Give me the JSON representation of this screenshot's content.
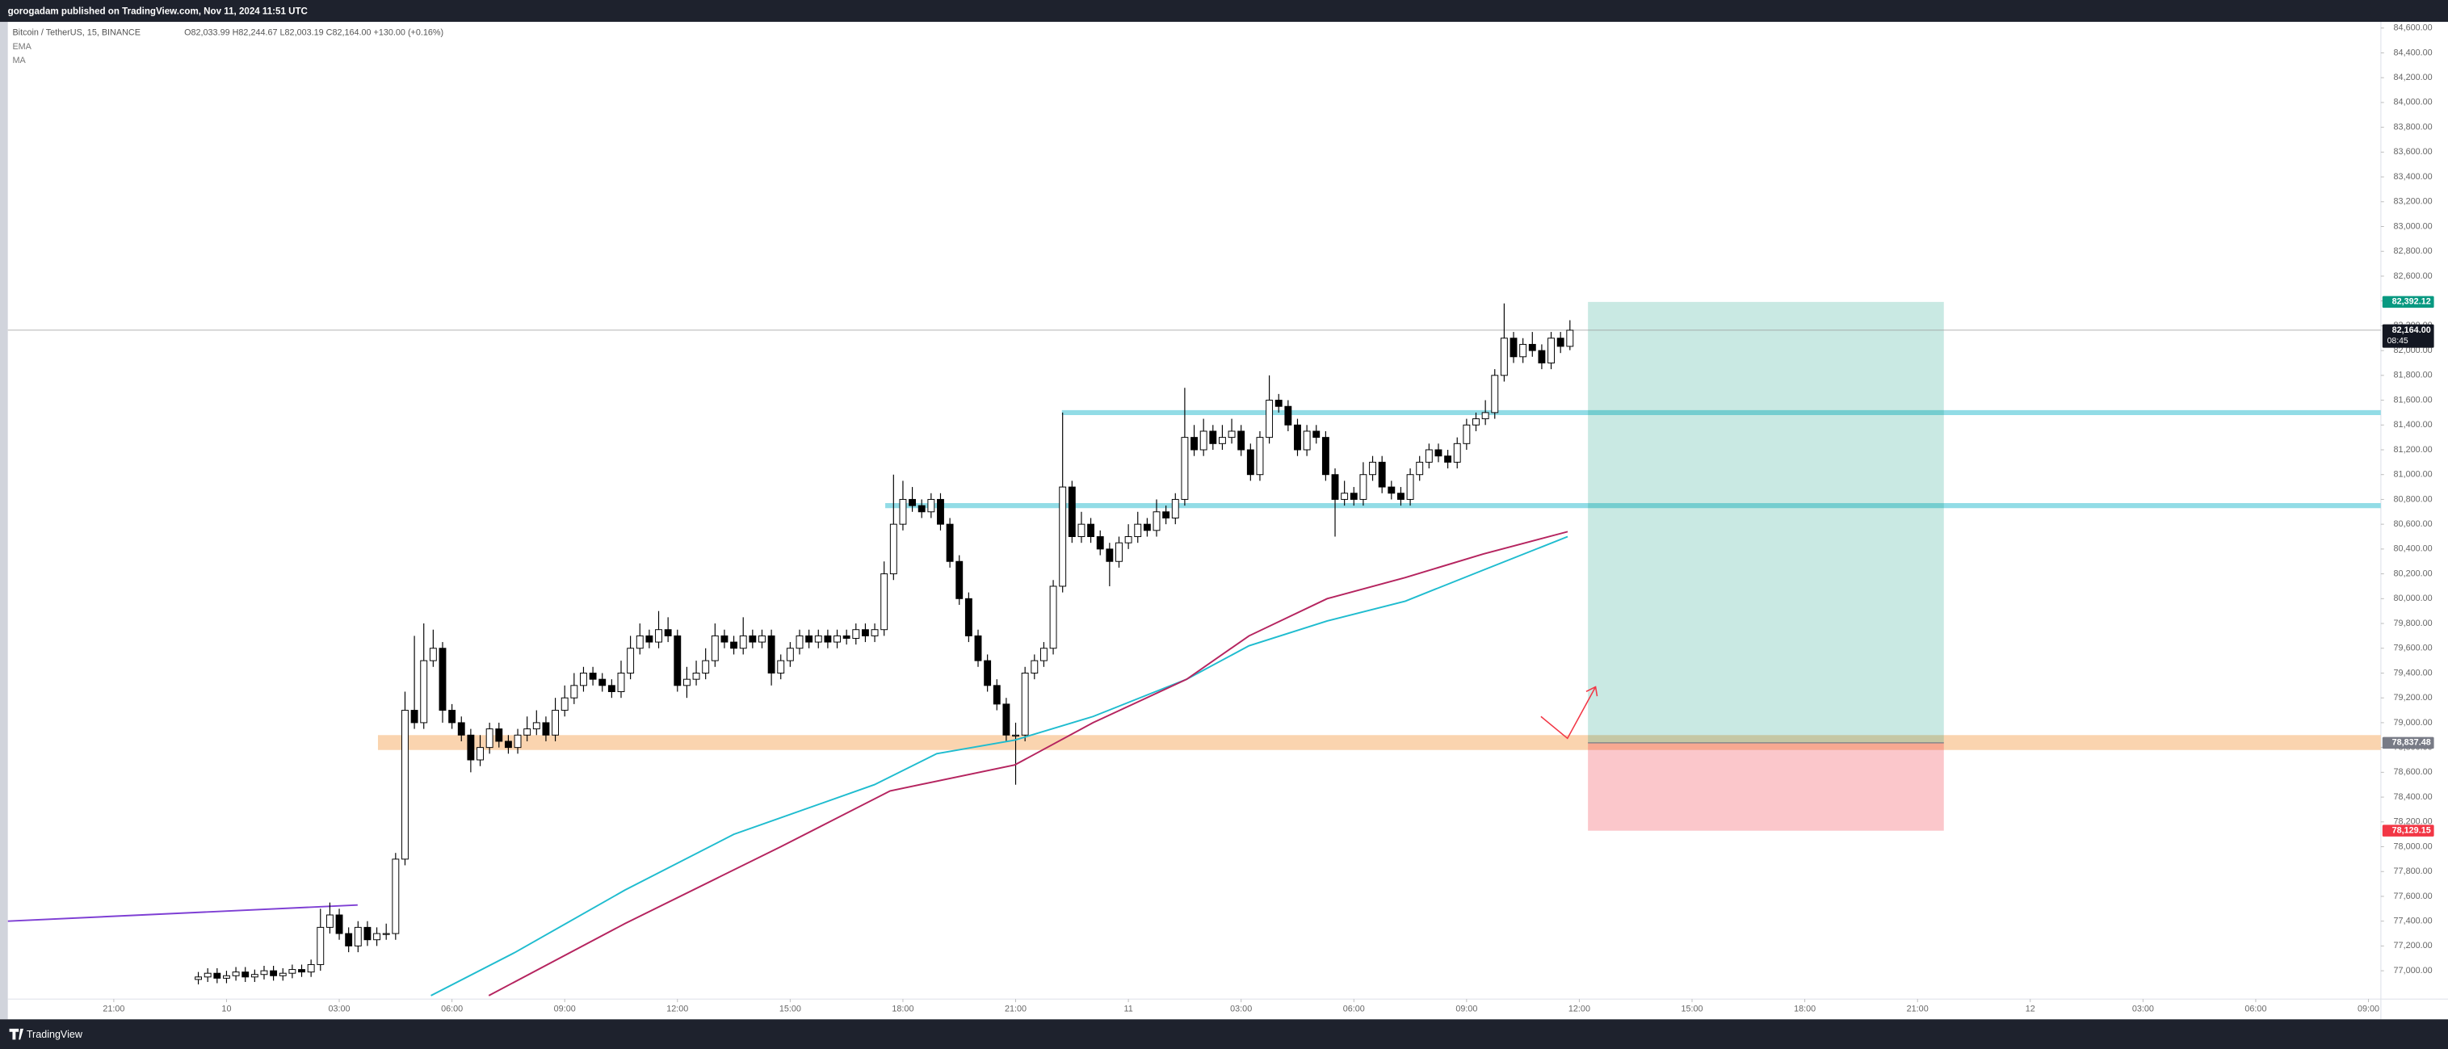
{
  "published": "gorogadam published on TradingView.com, Nov 11, 2024 11:51 UTC",
  "footer": "TradingView",
  "chart_data": {
    "type": "candlestick",
    "symbol": "Bitcoin / TetherUS, 15, BINANCE",
    "ohlc_text": "O82,033.99 H82,244.67 L82,003.19 C82,164.00 +130.00 (+0.16%)",
    "up_color": "#ffffff",
    "down_color": "#000000",
    "wick_color": "#000000",
    "xlim": [
      -5.82,
      57.33
    ],
    "ylim": [
      76772,
      84650
    ],
    "grid": false,
    "xticks": [
      {
        "value": -3,
        "label": "21:00"
      },
      {
        "value": 0,
        "label": "10"
      },
      {
        "value": 3,
        "label": "03:00"
      },
      {
        "value": 6,
        "label": "06:00"
      },
      {
        "value": 9,
        "label": "09:00"
      },
      {
        "value": 12,
        "label": "12:00"
      },
      {
        "value": 15,
        "label": "15:00"
      },
      {
        "value": 18,
        "label": "18:00"
      },
      {
        "value": 21,
        "label": "21:00"
      },
      {
        "value": 24,
        "label": "11"
      },
      {
        "value": 27,
        "label": "03:00"
      },
      {
        "value": 30,
        "label": "06:00"
      },
      {
        "value": 33,
        "label": "09:00"
      },
      {
        "value": 36,
        "label": "12:00"
      },
      {
        "value": 39,
        "label": "15:00"
      },
      {
        "value": 42,
        "label": "18:00"
      },
      {
        "value": 45,
        "label": "21:00"
      },
      {
        "value": 48,
        "label": "12"
      },
      {
        "value": 51,
        "label": "03:00"
      },
      {
        "value": 54,
        "label": "06:00"
      },
      {
        "value": 57,
        "label": "09:00"
      }
    ],
    "yticks": [
      {
        "value": 77000,
        "label": "77,000.00"
      },
      {
        "value": 77200,
        "label": "77,200.00"
      },
      {
        "value": 77400,
        "label": "77,400.00"
      },
      {
        "value": 77600,
        "label": "77,600.00"
      },
      {
        "value": 77800,
        "label": "77,800.00"
      },
      {
        "value": 78000,
        "label": "78,000.00"
      },
      {
        "value": 78200,
        "label": "78,200.00"
      },
      {
        "value": 78400,
        "label": "78,400.00"
      },
      {
        "value": 78600,
        "label": "78,600.00"
      },
      {
        "value": 78800,
        "label": "78,800.00"
      },
      {
        "value": 79000,
        "label": "79,000.00"
      },
      {
        "value": 79200,
        "label": "79,200.00"
      },
      {
        "value": 79400,
        "label": "79,400.00"
      },
      {
        "value": 79600,
        "label": "79,600.00"
      },
      {
        "value": 79800,
        "label": "79,800.00"
      },
      {
        "value": 80000,
        "label": "80,000.00"
      },
      {
        "value": 80200,
        "label": "80,200.00"
      },
      {
        "value": 80400,
        "label": "80,400.00"
      },
      {
        "value": 80600,
        "label": "80,600.00"
      },
      {
        "value": 80800,
        "label": "80,800.00"
      },
      {
        "value": 81000,
        "label": "81,000.00"
      },
      {
        "value": 81200,
        "label": "81,200.00"
      },
      {
        "value": 81400,
        "label": "81,400.00"
      },
      {
        "value": 81600,
        "label": "81,600.00"
      },
      {
        "value": 81800,
        "label": "81,800.00"
      },
      {
        "value": 82000,
        "label": "82,000.00"
      },
      {
        "value": 82200,
        "label": "82,200.00"
      },
      {
        "value": 82400,
        "label": "82,400.00"
      },
      {
        "value": 82600,
        "label": "82,600.00"
      },
      {
        "value": 82800,
        "label": "82,800.00"
      },
      {
        "value": 83000,
        "label": "83,000.00"
      },
      {
        "value": 83200,
        "label": "83,200.00"
      },
      {
        "value": 83400,
        "label": "83,400.00"
      },
      {
        "value": 83600,
        "label": "83,600.00"
      },
      {
        "value": 83800,
        "label": "83,800.00"
      },
      {
        "value": 84000,
        "label": "84,000.00"
      },
      {
        "value": 84200,
        "label": "84,200.00"
      },
      {
        "value": 84400,
        "label": "84,400.00"
      },
      {
        "value": 84600,
        "label": "84,600.00"
      }
    ],
    "x": [
      -0.75,
      -0.5,
      -0.25,
      0,
      0.25,
      0.5,
      0.75,
      1,
      1.25,
      1.5,
      1.75,
      2,
      2.25,
      2.5,
      2.75,
      3,
      3.25,
      3.5,
      3.75,
      4,
      4.25,
      4.5,
      4.75,
      5,
      5.25,
      5.5,
      5.75,
      6,
      6.25,
      6.5,
      6.75,
      7,
      7.25,
      7.5,
      7.75,
      8,
      8.25,
      8.5,
      8.75,
      9,
      9.25,
      9.5,
      9.75,
      10,
      10.25,
      10.5,
      10.75,
      11,
      11.25,
      11.5,
      11.75,
      12,
      12.25,
      12.5,
      12.75,
      13,
      13.25,
      13.5,
      13.75,
      14,
      14.25,
      14.5,
      14.75,
      15,
      15.25,
      15.5,
      15.75,
      16,
      16.25,
      16.5,
      16.75,
      17,
      17.25,
      17.5,
      17.75,
      18,
      18.25,
      18.5,
      18.75,
      19,
      19.25,
      19.5,
      19.75,
      20,
      20.25,
      20.5,
      20.75,
      21,
      21.25,
      21.5,
      21.75,
      22,
      22.25,
      22.5,
      22.75,
      23,
      23.25,
      23.5,
      23.75,
      24,
      24.25,
      24.5,
      24.75,
      25,
      25.25,
      25.5,
      25.75,
      26,
      26.25,
      26.5,
      26.75,
      27,
      27.25,
      27.5,
      27.75,
      28,
      28.25,
      28.5,
      28.75,
      29,
      29.25,
      29.5,
      29.75,
      30,
      30.25,
      30.5,
      30.75,
      31,
      31.25,
      31.5,
      31.75,
      32,
      32.25,
      32.5,
      32.75,
      33,
      33.25,
      33.5,
      33.75,
      34,
      34.25,
      34.5,
      34.75,
      35,
      35.25,
      35.5,
      35.75
    ],
    "open": [
      76930,
      76950,
      76980,
      76940,
      76960,
      76990,
      76950,
      76970,
      77000,
      76960,
      76980,
      77010,
      76990,
      77050,
      77350,
      77450,
      77300,
      77200,
      77350,
      77250,
      77300,
      77300,
      77900,
      79100,
      79000,
      79500,
      79600,
      79100,
      79000,
      78900,
      78700,
      78800,
      78950,
      78850,
      78800,
      78900,
      78950,
      79000,
      78900,
      79100,
      79200,
      79300,
      79400,
      79350,
      79300,
      79250,
      79400,
      79600,
      79700,
      79650,
      79750,
      79700,
      79300,
      79350,
      79400,
      79500,
      79700,
      79650,
      79600,
      79700,
      79650,
      79700,
      79400,
      79500,
      79600,
      79700,
      79650,
      79700,
      79650,
      79700,
      79680,
      79750,
      79700,
      79750,
      80200,
      80600,
      80800,
      80750,
      80700,
      80800,
      80600,
      80300,
      80000,
      79700,
      79500,
      79300,
      79150,
      78900,
      78900,
      79400,
      79500,
      79600,
      80100,
      80900,
      80500,
      80600,
      80500,
      80400,
      80300,
      80450,
      80500,
      80600,
      80550,
      80700,
      80650,
      80800,
      81300,
      81200,
      81350,
      81250,
      81300,
      81350,
      81200,
      81000,
      81300,
      81600,
      81550,
      81400,
      81200,
      81350,
      81300,
      81000,
      80800,
      80850,
      80800,
      81000,
      81100,
      80900,
      80850,
      80800,
      81000,
      81100,
      81200,
      81150,
      81100,
      81250,
      81400,
      81450,
      81500,
      81800,
      82100,
      81950,
      82050,
      82000,
      81900,
      82100,
      82033.99
    ],
    "high": [
      76990,
      77020,
      77020,
      77000,
      77030,
      77030,
      77010,
      77040,
      77040,
      77020,
      77050,
      77050,
      77090,
      77500,
      77550,
      77500,
      77350,
      77400,
      77400,
      77350,
      77380,
      77950,
      79250,
      79700,
      79800,
      79750,
      79650,
      79150,
      79050,
      78950,
      78900,
      79000,
      79000,
      78900,
      78950,
      79050,
      79100,
      79050,
      79200,
      79300,
      79400,
      79450,
      79450,
      79400,
      79350,
      79500,
      79700,
      79800,
      79750,
      79900,
      79850,
      79750,
      79450,
      79500,
      79600,
      79800,
      79750,
      79700,
      79850,
      79750,
      79750,
      79750,
      79550,
      79650,
      79750,
      79750,
      79750,
      79750,
      79750,
      79750,
      79800,
      79800,
      79800,
      80300,
      81000,
      80950,
      80900,
      80800,
      80850,
      80850,
      80650,
      80350,
      80050,
      79750,
      79550,
      79350,
      79200,
      79000,
      79450,
      79550,
      79650,
      80150,
      81500,
      80950,
      80700,
      80650,
      80550,
      80450,
      80500,
      80600,
      80700,
      80650,
      80800,
      80750,
      80850,
      81700,
      81400,
      81450,
      81400,
      81400,
      81450,
      81400,
      81250,
      81350,
      81800,
      81650,
      81600,
      81450,
      81400,
      81400,
      81350,
      81050,
      80950,
      80900,
      81100,
      81150,
      81150,
      80950,
      80900,
      81050,
      81150,
      81250,
      81250,
      81200,
      81300,
      81450,
      81500,
      81600,
      81850,
      82380,
      82150,
      82100,
      82150,
      82050,
      82150,
      82150,
      82244.67
    ],
    "low": [
      76890,
      76910,
      76900,
      76900,
      76920,
      76910,
      76910,
      76930,
      76920,
      76920,
      76940,
      76950,
      76950,
      77000,
      77300,
      77250,
      77150,
      77150,
      77200,
      77200,
      77250,
      77250,
      77850,
      78950,
      78950,
      79450,
      79000,
      78950,
      78850,
      78600,
      78650,
      78750,
      78800,
      78750,
      78750,
      78850,
      78900,
      78850,
      78850,
      79050,
      79150,
      79250,
      79300,
      79250,
      79200,
      79200,
      79350,
      79550,
      79600,
      79600,
      79650,
      79250,
      79200,
      79300,
      79350,
      79450,
      79600,
      79550,
      79550,
      79600,
      79600,
      79300,
      79350,
      79450,
      79550,
      79600,
      79600,
      79600,
      79600,
      79630,
      79630,
      79650,
      79650,
      79700,
      80150,
      80550,
      80700,
      80650,
      80650,
      80550,
      80250,
      79950,
      79650,
      79450,
      79250,
      79100,
      78850,
      78500,
      78850,
      79350,
      79450,
      79550,
      80050,
      80450,
      80450,
      80450,
      80350,
      80100,
      80250,
      80400,
      80450,
      80500,
      80500,
      80600,
      80600,
      80750,
      81150,
      81150,
      81200,
      81200,
      81250,
      81150,
      80950,
      80950,
      81250,
      81500,
      81350,
      81150,
      81150,
      81250,
      80950,
      80500,
      80750,
      80750,
      80750,
      80950,
      80850,
      80800,
      80750,
      80750,
      80950,
      81050,
      81100,
      81050,
      81050,
      81200,
      81350,
      81400,
      81450,
      81750,
      81900,
      81900,
      81950,
      81850,
      81850,
      81980,
      82003.19
    ],
    "close": [
      76950,
      76980,
      76940,
      76960,
      76990,
      76950,
      76970,
      77000,
      76960,
      76980,
      77010,
      76990,
      77050,
      77350,
      77450,
      77300,
      77200,
      77350,
      77250,
      77300,
      77300,
      77900,
      79100,
      79000,
      79500,
      79600,
      79100,
      79000,
      78900,
      78700,
      78800,
      78950,
      78850,
      78800,
      78900,
      78950,
      79000,
      78900,
      79100,
      79200,
      79300,
      79400,
      79350,
      79300,
      79250,
      79400,
      79600,
      79700,
      79650,
      79750,
      79700,
      79300,
      79350,
      79400,
      79500,
      79700,
      79650,
      79600,
      79700,
      79650,
      79700,
      79400,
      79500,
      79600,
      79700,
      79650,
      79700,
      79650,
      79700,
      79680,
      79750,
      79700,
      79750,
      80200,
      80600,
      80800,
      80750,
      80700,
      80800,
      80600,
      80300,
      80000,
      79700,
      79500,
      79300,
      79150,
      78900,
      78900,
      79400,
      79500,
      79600,
      80100,
      80900,
      80500,
      80600,
      80500,
      80400,
      80300,
      80450,
      80500,
      80600,
      80550,
      80700,
      80650,
      80800,
      81300,
      81200,
      81350,
      81250,
      81300,
      81350,
      81200,
      81000,
      81300,
      81600,
      81550,
      81400,
      81200,
      81350,
      81300,
      81000,
      80800,
      80850,
      80800,
      81000,
      81100,
      80900,
      80850,
      80800,
      81000,
      81100,
      81200,
      81150,
      81100,
      81250,
      81400,
      81450,
      81500,
      81800,
      82100,
      81950,
      82050,
      82000,
      81900,
      82100,
      82034,
      82164
    ],
    "indicators": [
      {
        "name": "EMA",
        "color": "#1fbccf",
        "x": [
          5.44,
          7.69,
          10.6,
          13.5,
          17.24,
          18.9,
          20.98,
          23.06,
          25.55,
          27.21,
          29.29,
          31.37,
          33.44,
          35.69
        ],
        "values": [
          76800,
          77150,
          77650,
          78100,
          78500,
          78750,
          78860,
          79050,
          79350,
          79620,
          79820,
          79980,
          80230,
          80500
        ]
      },
      {
        "name": "MA",
        "color": "#b5245f",
        "x": [
          6.98,
          10.6,
          14.75,
          17.66,
          20.98,
          23.06,
          25.55,
          27.21,
          29.29,
          31.37,
          33.44,
          35.69
        ],
        "values": [
          76800,
          77380,
          78000,
          78450,
          78660,
          79000,
          79350,
          79700,
          80000,
          80170,
          80360,
          80540
        ]
      }
    ],
    "levels": [
      {
        "value": 81500,
        "x_start": 22.23,
        "color": "#7fd6e2"
      },
      {
        "value": 80750,
        "x_start": 17.53,
        "color": "#7fd6e2"
      }
    ],
    "zone": {
      "from": 78780,
      "to": 78900,
      "x_start": 4.03,
      "color": "#f9c99b"
    },
    "trendline": {
      "x": [
        -5.82,
        3.49
      ],
      "values": [
        77400,
        77530
      ],
      "color": "#7e3fd4"
    },
    "position": {
      "x": [
        36.23,
        45.7
      ],
      "target": {
        "value": 82392.12,
        "label": "82,392.12",
        "color": "#089981"
      },
      "entry": {
        "value": 78837.48,
        "label": "78,837.48",
        "color": "#787b86"
      },
      "stop": {
        "value": 78129.15,
        "label": "78,129.15",
        "color": "#f23645"
      }
    },
    "last_price": {
      "value": 82164,
      "label": "82,164.00",
      "countdown": "08:45",
      "color": "#131722"
    }
  }
}
